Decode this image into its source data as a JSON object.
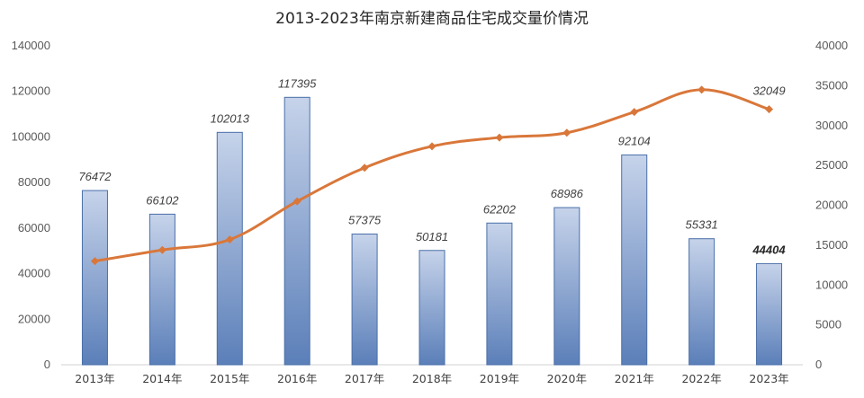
{
  "chart_data": {
    "type": "bar+line",
    "title": "2013-2023年南京新建商品住宅成交量价情况",
    "categories": [
      "2013年",
      "2014年",
      "2015年",
      "2016年",
      "2017年",
      "2018年",
      "2019年",
      "2020年",
      "2021年",
      "2022年",
      "2023年"
    ],
    "bar_series": {
      "values": [
        76472,
        66102,
        102013,
        117395,
        57375,
        50181,
        62202,
        68986,
        92104,
        55331,
        44404
      ],
      "axis": "left",
      "color_top": "#c6d3ea",
      "color_bottom": "#5b7fb9",
      "border": "#4a6fa8"
    },
    "line_series": {
      "values": [
        13000,
        14400,
        15700,
        20500,
        24700,
        27400,
        28500,
        29100,
        31700,
        34500,
        32049
      ],
      "axis": "right",
      "labeled_value": "32049",
      "color": "#d9773a"
    },
    "left_axis": {
      "ylim": [
        0,
        140000
      ],
      "ticks": [
        "0",
        "20000",
        "40000",
        "60000",
        "80000",
        "100000",
        "120000",
        "140000"
      ]
    },
    "right_axis": {
      "ylim": [
        0,
        40000
      ],
      "ticks": [
        "0",
        "5000",
        "10000",
        "15000",
        "20000",
        "25000",
        "30000",
        "35000",
        "40000"
      ]
    },
    "bold_label_index": 10
  }
}
